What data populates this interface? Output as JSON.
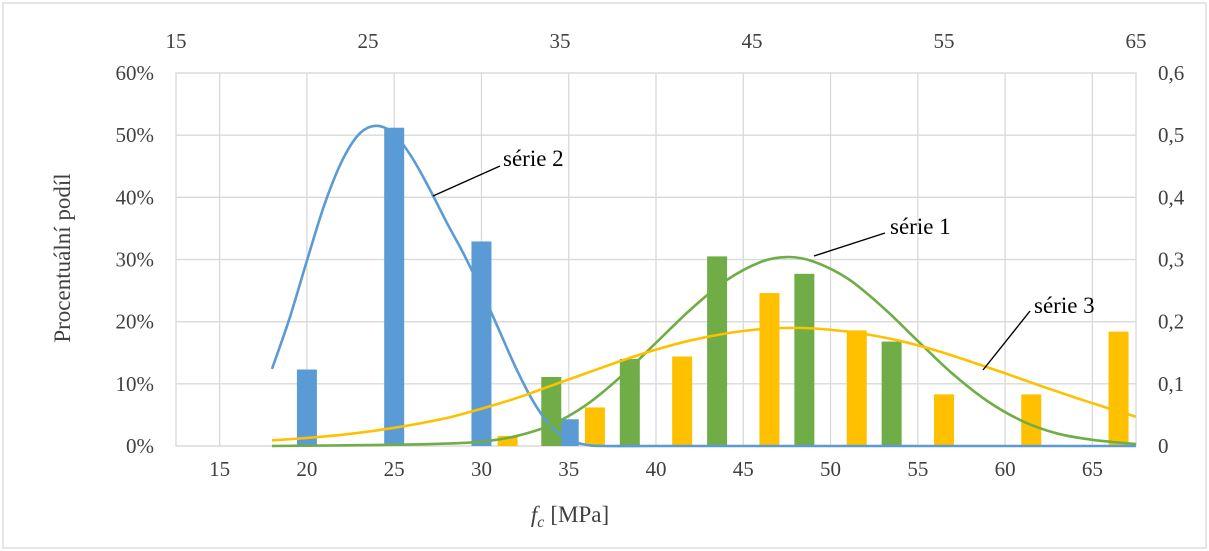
{
  "chart_data": {
    "type": "bar",
    "xlabel_var": "f",
    "xlabel_sub": "c",
    "xlabel_unit": "[MPa]",
    "ylabel": "Procentuální podíl",
    "x_bottom": {
      "ticks": [
        15,
        20,
        25,
        30,
        35,
        40,
        45,
        50,
        55,
        60,
        65
      ],
      "range": [
        12.5,
        67.5
      ]
    },
    "x_top": {
      "ticks": [
        15,
        25,
        35,
        45,
        55,
        65
      ],
      "range": [
        15,
        65
      ]
    },
    "y_left": {
      "range": [
        0,
        60
      ],
      "ticks": [
        "0%",
        "10%",
        "20%",
        "30%",
        "40%",
        "50%",
        "60%"
      ]
    },
    "y_right": {
      "range": [
        0,
        0.6
      ],
      "ticks": [
        "0",
        "0,1",
        "0,2",
        "0,3",
        "0,4",
        "0,5",
        "0,6"
      ]
    },
    "grid": true,
    "series": [
      {
        "name": "série 2",
        "color": "#5b9bd5",
        "bars": [
          [
            20,
            12.3
          ],
          [
            25,
            51.2
          ],
          [
            30,
            32.9
          ],
          [
            35,
            4.3
          ]
        ],
        "curve": [
          [
            18,
            12.4
          ],
          [
            19,
            20.5
          ],
          [
            20,
            29.8
          ],
          [
            21,
            38.8
          ],
          [
            22,
            45.8
          ],
          [
            23,
            50.2
          ],
          [
            24,
            51.5
          ],
          [
            25,
            50.2
          ],
          [
            26,
            46.5
          ],
          [
            27,
            41.5
          ],
          [
            28,
            36.0
          ],
          [
            29,
            30.8
          ],
          [
            30,
            25.0
          ],
          [
            31,
            18.7
          ],
          [
            32,
            12.4
          ],
          [
            33,
            7.0
          ],
          [
            34,
            3.1
          ],
          [
            35,
            1.0
          ],
          [
            36,
            0.2
          ],
          [
            37,
            0
          ],
          [
            40,
            0
          ],
          [
            50,
            0
          ],
          [
            60,
            0
          ],
          [
            67.5,
            0
          ]
        ]
      },
      {
        "name": "série 1",
        "color": "#70ad47",
        "bars": [
          [
            34,
            11.1
          ],
          [
            38.5,
            14.0
          ],
          [
            43.5,
            30.5
          ],
          [
            48.5,
            27.7
          ],
          [
            53.5,
            16.8
          ]
        ],
        "curve": [
          [
            18,
            0
          ],
          [
            25,
            0.2
          ],
          [
            28,
            0.4
          ],
          [
            30,
            0.7
          ],
          [
            32,
            1.6
          ],
          [
            34,
            3.4
          ],
          [
            36,
            6.6
          ],
          [
            38,
            11.2
          ],
          [
            40,
            16.6
          ],
          [
            42,
            22.0
          ],
          [
            44,
            26.6
          ],
          [
            46,
            29.6
          ],
          [
            47.5,
            30.4
          ],
          [
            49,
            29.7
          ],
          [
            51,
            26.9
          ],
          [
            53,
            22.3
          ],
          [
            55,
            16.9
          ],
          [
            57,
            11.6
          ],
          [
            59,
            7.2
          ],
          [
            61,
            4.0
          ],
          [
            63,
            2.0
          ],
          [
            65,
            1.0
          ],
          [
            67.5,
            0.3
          ]
        ]
      },
      {
        "name": "série 3",
        "color": "#ffc000",
        "bars": [
          [
            31.5,
            1.6
          ],
          [
            36.5,
            6.2
          ],
          [
            41.5,
            14.4
          ],
          [
            46.5,
            24.6
          ],
          [
            51.5,
            18.6
          ],
          [
            56.5,
            8.3
          ],
          [
            61.5,
            8.3
          ],
          [
            66.5,
            18.4
          ]
        ],
        "curve": [
          [
            18,
            0.9
          ],
          [
            20,
            1.3
          ],
          [
            22,
            1.8
          ],
          [
            24,
            2.5
          ],
          [
            26,
            3.4
          ],
          [
            28,
            4.5
          ],
          [
            30,
            6.0
          ],
          [
            32,
            7.7
          ],
          [
            34,
            9.7
          ],
          [
            36,
            11.7
          ],
          [
            38,
            13.7
          ],
          [
            40,
            15.5
          ],
          [
            42,
            17.0
          ],
          [
            44,
            18.1
          ],
          [
            46,
            18.8
          ],
          [
            48,
            19.0
          ],
          [
            50,
            18.7
          ],
          [
            52,
            18.0
          ],
          [
            54,
            16.9
          ],
          [
            56,
            15.4
          ],
          [
            58,
            13.6
          ],
          [
            60,
            11.7
          ],
          [
            62,
            9.7
          ],
          [
            64,
            7.8
          ],
          [
            66,
            6.0
          ],
          [
            67.5,
            4.7
          ]
        ]
      }
    ],
    "annotations": [
      {
        "text": "série 2",
        "series": "série 2"
      },
      {
        "text": "série 1",
        "series": "série 1"
      },
      {
        "text": "série 3",
        "series": "série 3"
      }
    ]
  }
}
